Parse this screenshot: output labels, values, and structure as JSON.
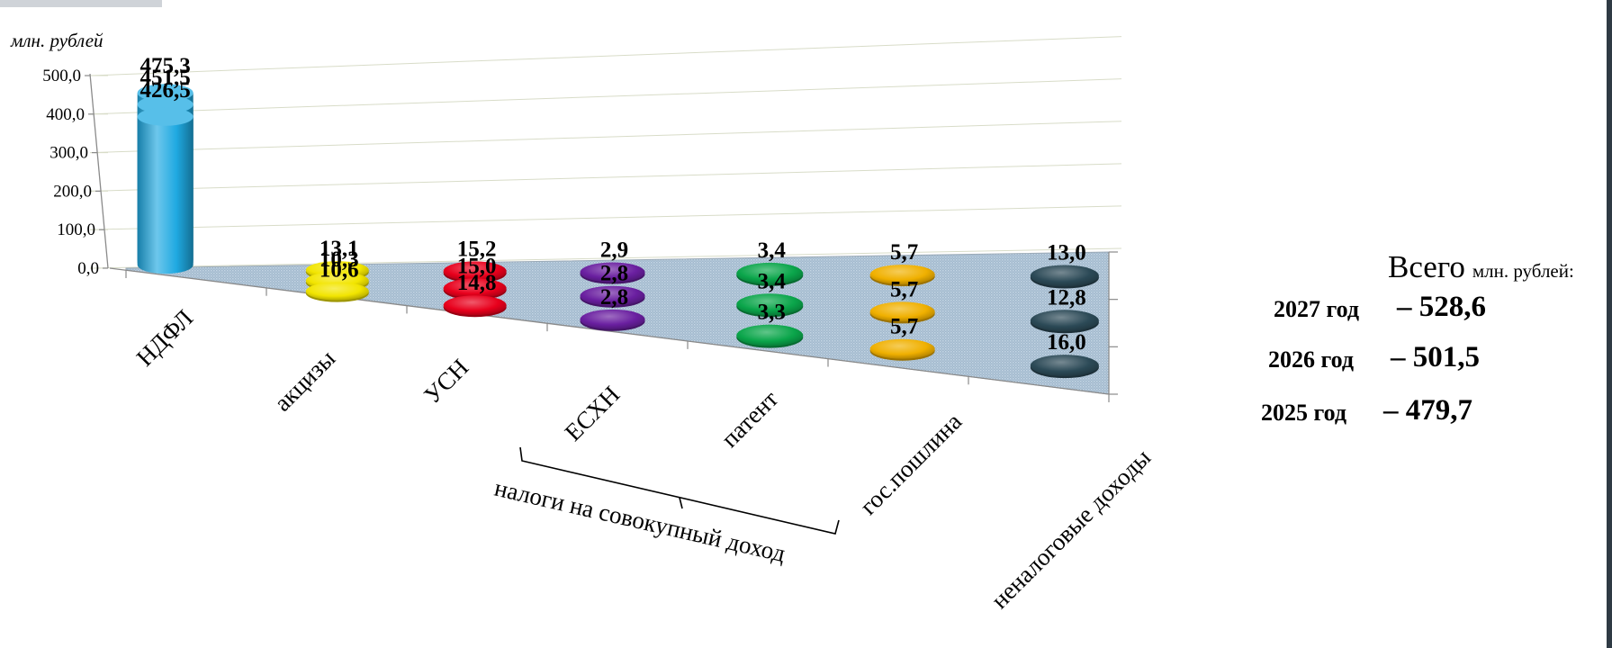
{
  "chart_data": {
    "type": "bar",
    "unit_label": "млн. рублей",
    "ylim": [
      0,
      500
    ],
    "y_ticks": [
      "0,0",
      "100,0",
      "200,0",
      "300,0",
      "400,0",
      "500,0"
    ],
    "categories": [
      "НДФЛ",
      "акцизы",
      "УСН",
      "ЕСХН",
      "патент",
      "гос.пошлина",
      "неналоговые доходы"
    ],
    "series": [
      {
        "name": "2025 год",
        "values": [
          426.5,
          10.6,
          14.8,
          2.8,
          3.3,
          5.7,
          16.0
        ]
      },
      {
        "name": "2026 год",
        "values": [
          451.5,
          10.3,
          15.0,
          2.8,
          3.4,
          5.7,
          12.8
        ]
      },
      {
        "name": "2027 год",
        "values": [
          475.3,
          13.1,
          15.2,
          2.9,
          3.4,
          5.7,
          13.0
        ]
      }
    ],
    "value_labels": [
      [
        "426,5",
        "10,6",
        "14,8",
        "2,8",
        "3,3",
        "5,7",
        "16,0"
      ],
      [
        "451,5",
        "10,3",
        "15,0",
        "2,8",
        "3,4",
        "5,7",
        "12,8"
      ],
      [
        "475,3",
        "13,1",
        "15,2",
        "2,9",
        "3,4",
        "5,7",
        "13,0"
      ]
    ],
    "category_colors": [
      "#1fa9e1",
      "#f2e500",
      "#e8001c",
      "#6a1fa0",
      "#0aa54a",
      "#f0b000",
      "#2c4a57"
    ],
    "group_label": "налоги на совокупный доход",
    "totals": {
      "title_main": "Всего",
      "title_unit": "млн. рублей:",
      "rows": [
        {
          "year": "2027 год",
          "value": "– 528,6"
        },
        {
          "year": "2026 год",
          "value": "– 501,5"
        },
        {
          "year": "2025 год",
          "value": "– 479,7"
        }
      ]
    },
    "grid": true,
    "legend": "right"
  }
}
